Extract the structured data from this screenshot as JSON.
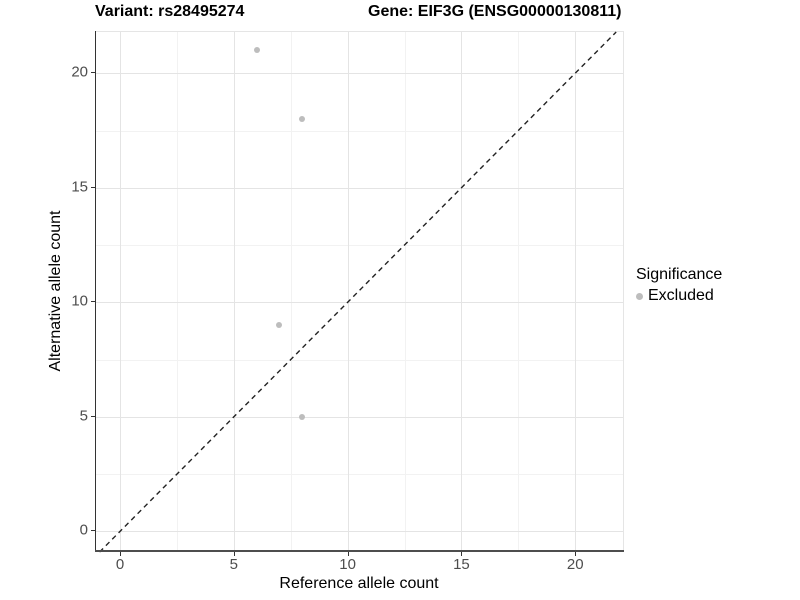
{
  "chart_data": {
    "type": "scatter",
    "title_left": "Variant: rs28495274",
    "title_right": "Gene: EIF3G (ENSG00000130811)",
    "xlabel": "Reference allele count",
    "ylabel": "Alternative allele count",
    "xlim": [
      -1.1,
      22.1
    ],
    "ylim": [
      -0.9,
      21.8
    ],
    "x_ticks": [
      0,
      5,
      10,
      15,
      20
    ],
    "y_ticks": [
      0,
      5,
      10,
      15,
      20
    ],
    "grid_major": [
      0,
      5,
      10,
      15,
      20
    ],
    "grid_minor": [
      2.5,
      7.5,
      12.5,
      17.5
    ],
    "grid_on": true,
    "identity_line": {
      "slope": 1,
      "intercept": 0,
      "style": "dashed",
      "color": "#222222"
    },
    "series": [
      {
        "name": "Excluded",
        "color": "#bdbdbd",
        "points": [
          {
            "x": 6,
            "y": 21
          },
          {
            "x": 8,
            "y": 18
          },
          {
            "x": 7,
            "y": 9
          },
          {
            "x": 8,
            "y": 5
          }
        ]
      }
    ],
    "legend": {
      "title": "Significance",
      "position": "right",
      "items": [
        {
          "label": "Excluded",
          "color": "#bdbdbd"
        }
      ]
    }
  },
  "colors": {
    "background": "#ffffff",
    "grid_major": "#e4e4e4",
    "grid_minor": "#f2f2f2",
    "axis_text": "#4d4d4d",
    "point": "#bdbdbd",
    "identity_line": "#222222"
  }
}
